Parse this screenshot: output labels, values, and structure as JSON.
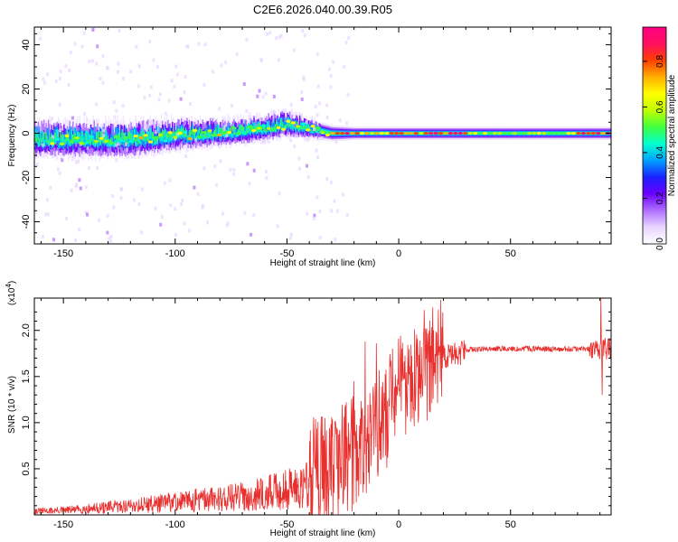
{
  "title": "C2E6.2026.040.00.39.R05",
  "colors": {
    "line": "#e8312f",
    "axis": "#000000",
    "colormap": [
      "#ffffff",
      "#e8d5ff",
      "#b070ff",
      "#6a00ff",
      "#1a20ff",
      "#00a0ff",
      "#00ffd0",
      "#40ff40",
      "#c0ff00",
      "#ffff00",
      "#ffb000",
      "#ff4000",
      "#ff1060",
      "#ff0080"
    ]
  },
  "chart_data": [
    {
      "type": "heatmap",
      "name": "spectrogram",
      "xlabel": "Height of straight line (km)",
      "ylabel": "Frequency (Hz)",
      "xlim": [
        -163,
        95
      ],
      "ylim": [
        -50,
        48
      ],
      "xticks": [
        -150,
        -100,
        -50,
        0,
        50
      ],
      "yticks": [
        40,
        20,
        0,
        -20,
        -40
      ],
      "band_center_hz": [
        [
          -163,
          -3
        ],
        [
          -120,
          -3
        ],
        [
          -100,
          -1
        ],
        [
          -80,
          0
        ],
        [
          -60,
          2
        ],
        [
          -50,
          4
        ],
        [
          -40,
          2
        ],
        [
          -30,
          0
        ],
        [
          0,
          0
        ],
        [
          50,
          0
        ],
        [
          95,
          0
        ]
      ],
      "band_halfwidth_hz": [
        [
          -163,
          8
        ],
        [
          -120,
          8
        ],
        [
          -80,
          6
        ],
        [
          -50,
          6
        ],
        [
          -35,
          4
        ],
        [
          -20,
          3
        ],
        [
          50,
          3
        ],
        [
          95,
          3
        ]
      ],
      "colorbar": {
        "label": "Normalized spectral amplitude",
        "range": [
          0,
          0.95
        ],
        "ticks": [
          "0.0",
          "0.2",
          "0.4",
          "0.6",
          "0.8"
        ]
      }
    },
    {
      "type": "line",
      "name": "snr",
      "xlabel": "Height of straight line (km)",
      "ylabel": "SNR (10 * v/v)",
      "y_multiplier_label": "(x10",
      "y_multiplier_exp": "4",
      "xlim": [
        -163,
        95
      ],
      "ylim": [
        0,
        2.35
      ],
      "xticks": [
        -150,
        -100,
        -50,
        0,
        50
      ],
      "yticks": [
        "0.5",
        "1.0",
        "1.5",
        "2.0"
      ],
      "trend_x": [
        -163,
        -150,
        -130,
        -110,
        -90,
        -70,
        -60,
        -50,
        -40,
        -30,
        -20,
        -15,
        -10,
        -5,
        0,
        5,
        10,
        15,
        20,
        25,
        30,
        40,
        60,
        80,
        85,
        90,
        95
      ],
      "trend_y": [
        0.04,
        0.05,
        0.08,
        0.12,
        0.16,
        0.2,
        0.23,
        0.28,
        0.35,
        0.45,
        0.6,
        0.75,
        0.9,
        1.05,
        1.25,
        1.38,
        1.5,
        1.62,
        1.72,
        1.76,
        1.79,
        1.8,
        1.8,
        1.8,
        1.8,
        1.8,
        1.8
      ],
      "notable_peaks": [
        [
          -15,
          1.88
        ],
        [
          -10,
          1.86
        ],
        [
          -20,
          1.45
        ],
        [
          -33,
          1.05
        ],
        [
          90.5,
          2.35
        ],
        [
          91,
          1.3
        ]
      ]
    }
  ]
}
